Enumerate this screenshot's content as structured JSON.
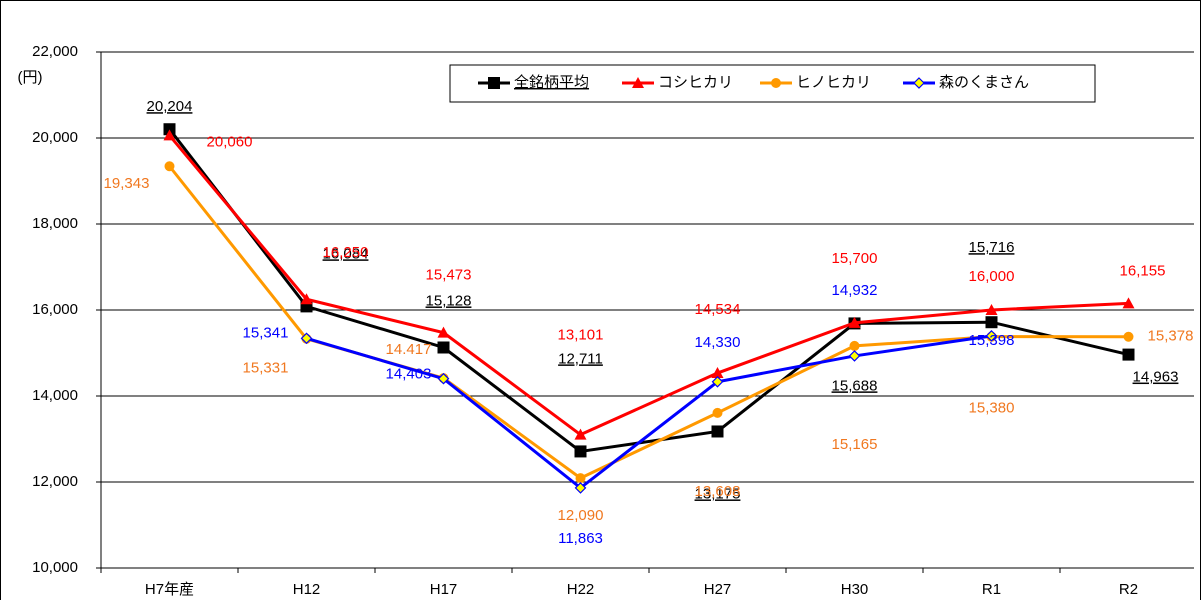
{
  "chart_data": {
    "type": "line",
    "y_axis_label": "(円)",
    "categories": [
      "H7年産",
      "H12",
      "H17",
      "H22",
      "H27",
      "H30",
      "R1",
      "R2"
    ],
    "series": [
      {
        "name": "全銘柄平均",
        "color": "#000000",
        "marker": "square",
        "values": [
          20204,
          16084,
          15128,
          12711,
          13175,
          15688,
          15716,
          14963
        ],
        "value_labels": [
          "20,204",
          "16,084",
          "15,128",
          "12,711",
          "13,175",
          "15,688",
          "15,716",
          "14,963"
        ]
      },
      {
        "name": "コシヒカリ",
        "color": "#ff0000",
        "marker": "triangle",
        "values": [
          20060,
          16250,
          15473,
          13101,
          14534,
          15700,
          16000,
          16155
        ],
        "value_labels": [
          "20,060",
          "16,250",
          "15,473",
          "13,101",
          "14,534",
          "15,700",
          "16,000",
          "16,155"
        ]
      },
      {
        "name": "ヒノヒカリ",
        "color": "#ff9900",
        "marker": "circle",
        "values": [
          19343,
          15331,
          14417,
          12090,
          13608,
          15165,
          15380,
          15378
        ],
        "value_labels": [
          "19,343",
          "15,331",
          "14.417",
          "12,090",
          "13,608",
          "15,165",
          "15,380",
          "15,378"
        ]
      },
      {
        "name": "森のくまさん",
        "color": "#0000ff",
        "marker": "diamond",
        "values": [
          null,
          15341,
          14403,
          11863,
          14330,
          14932,
          15398,
          null
        ],
        "value_labels": [
          null,
          "15,341",
          "14,403",
          "11,863",
          "14,330",
          "14,932",
          "15,398",
          null
        ]
      }
    ],
    "ylim": [
      10000,
      22000
    ],
    "yticks": [
      {
        "value": 10000,
        "label": "10,000"
      },
      {
        "value": 12000,
        "label": "12,000"
      },
      {
        "value": 14000,
        "label": "14,000"
      },
      {
        "value": 16000,
        "label": "16,000"
      },
      {
        "value": 18000,
        "label": "18,000"
      },
      {
        "value": 20000,
        "label": "20,000"
      },
      {
        "value": 22000,
        "label": "22,000"
      }
    ],
    "grid": true
  }
}
